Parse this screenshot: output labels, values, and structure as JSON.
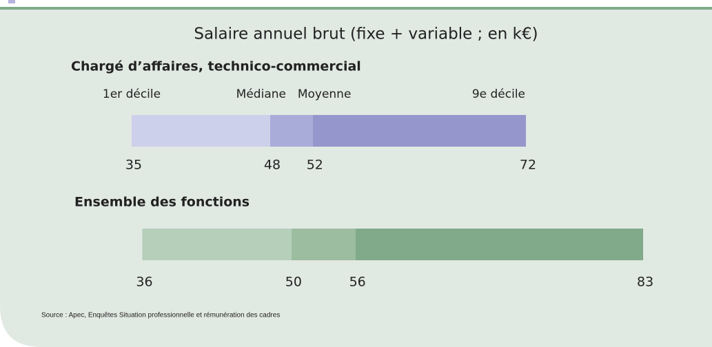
{
  "chart_data": {
    "type": "range",
    "title": "Salaire annuel brut (fixe + variable ; en k€)",
    "markers": [
      "1er décile",
      "Médiane",
      "Moyenne",
      "9e décile"
    ],
    "series": [
      {
        "name": "Chargé d’affaires, technico-commercial",
        "colors": [
          "#cdd0ea",
          "#a9acd8",
          "#9597cc"
        ],
        "values": [
          35,
          48,
          52,
          72
        ]
      },
      {
        "name": "Ensemble des fonctions",
        "colors": [
          "#b5cfbb",
          "#9cbd9f",
          "#80aa8a"
        ],
        "values": [
          36,
          50,
          56,
          83
        ]
      }
    ],
    "source": "Source : Apec, Enquêtes Situation professionnelle et rémunération des cadres"
  }
}
